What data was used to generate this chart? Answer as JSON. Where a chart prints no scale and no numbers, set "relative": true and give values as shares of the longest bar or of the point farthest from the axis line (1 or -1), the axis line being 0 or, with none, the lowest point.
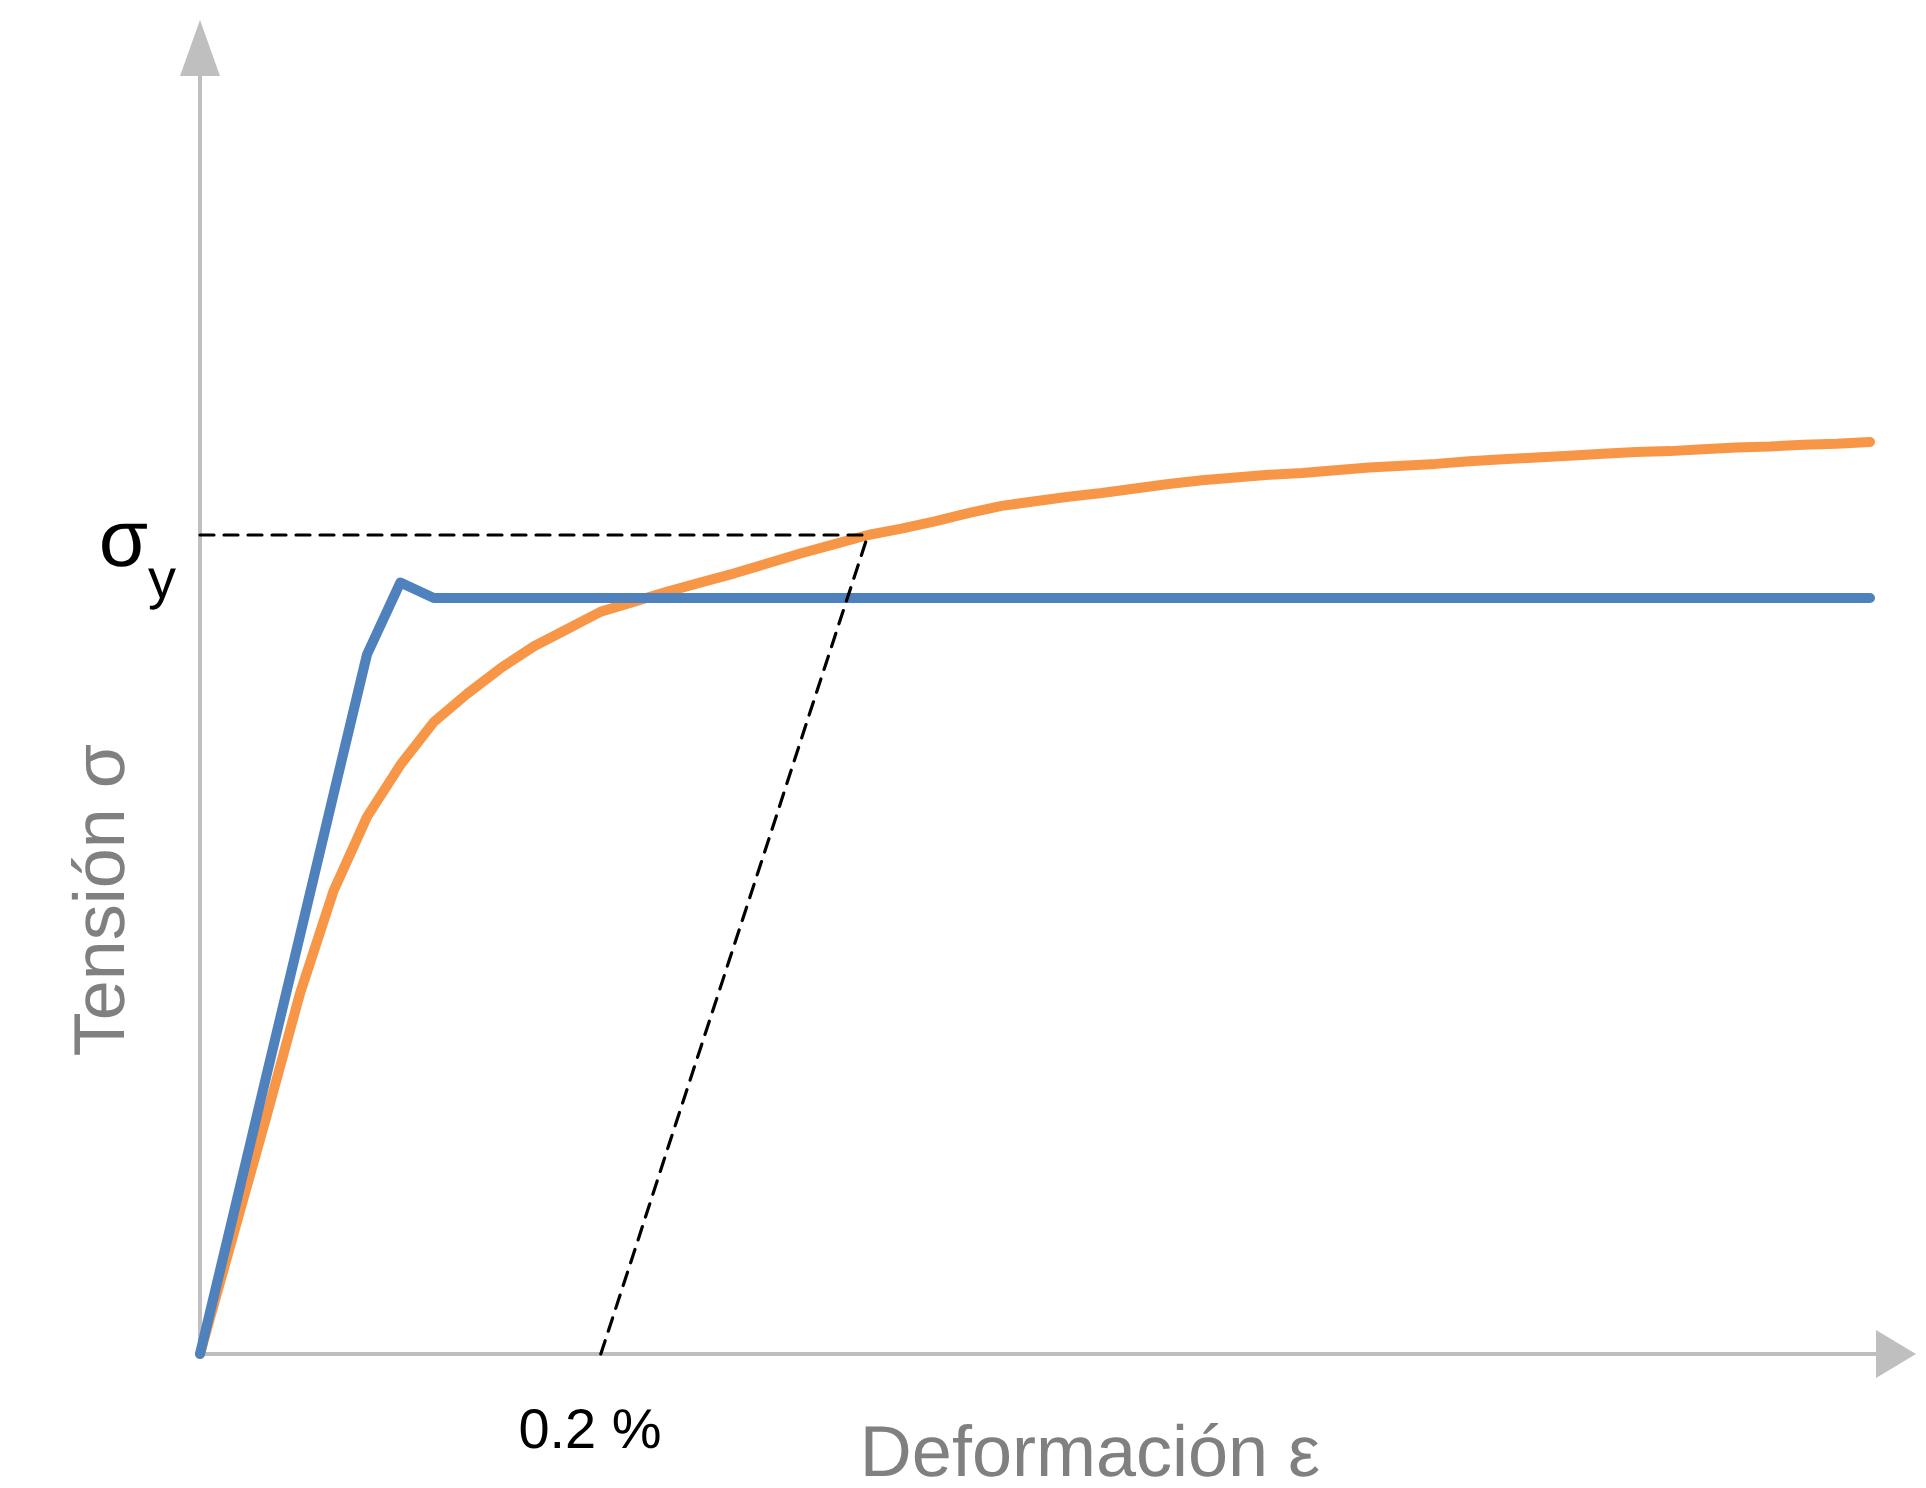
{
  "chart_data": {
    "type": "line",
    "relative": true,
    "xlabel": "Deformación ε",
    "ylabel": "Tensión σ",
    "line_style": "solid",
    "marker": "none",
    "categories": [
      null,
      null,
      null,
      null,
      null,
      null,
      null,
      null,
      null,
      null,
      null,
      null,
      null,
      null,
      null,
      null,
      null,
      null,
      null,
      null,
      null,
      null,
      null,
      null,
      null,
      null,
      null,
      null,
      null,
      null,
      null,
      null,
      null,
      null,
      null,
      null,
      null,
      null,
      null,
      null,
      null,
      null,
      null,
      null,
      null,
      null,
      null,
      null,
      null,
      null,
      null
    ],
    "series": [
      {
        "color": "#f79646",
        "values": [
          0,
          0.131,
          0.262,
          0.396,
          0.508,
          0.589,
          0.646,
          0.693,
          0.724,
          0.752,
          0.776,
          0.795,
          0.814,
          0.825,
          0.836,
          0.846,
          0.856,
          0.867,
          0.878,
          0.888,
          0.898,
          0.905,
          0.913,
          0.922,
          0.93,
          0.935,
          0.94,
          0.944,
          0.949,
          0.954,
          0.958,
          0.961,
          0.964,
          0.966,
          0.969,
          0.972,
          0.974,
          0.976,
          0.979,
          0.981,
          0.983,
          0.985,
          0.987,
          0.989,
          0.99,
          0.992,
          0.994,
          0.995,
          0.997,
          0.998,
          1
        ]
      },
      {
        "color": "#4f81bd",
        "values": [
          0,
          0.153,
          0.307,
          0.46,
          0.614,
          0.767,
          0.846,
          0.829,
          0.829,
          0.829,
          0.829,
          0.829,
          0.829,
          0.829,
          0.829,
          0.829,
          0.829,
          0.829,
          0.829,
          0.829,
          0.829,
          0.829,
          0.829,
          0.829,
          0.829,
          0.829,
          0.829,
          0.829,
          0.829,
          0.829,
          0.829,
          0.829,
          0.829,
          0.829,
          0.829,
          0.829,
          0.829,
          0.829,
          0.829,
          0.829,
          0.829,
          0.829,
          0.829,
          0.829,
          0.829,
          0.829,
          0.829,
          0.829,
          0.829,
          0.829,
          0.829
        ]
      },
      {
        "color": "#000000",
        "line_style": "dashed",
        "values": [
          0.898,
          0.898,
          0.898,
          0.898,
          0.898,
          0.898,
          0.898,
          0.898,
          0.898,
          0.898,
          0.898,
          0.898,
          0.898,
          0.898,
          0.898,
          0.898,
          0.898,
          0.898,
          0.898,
          0.898,
          0.898,
          null,
          null,
          null,
          null,
          null,
          null,
          null,
          null,
          null,
          null,
          null,
          null,
          null,
          null,
          null,
          null,
          null,
          null,
          null,
          null,
          null,
          null,
          null,
          null,
          null,
          null,
          null,
          null,
          null,
          null
        ]
      },
      {
        "color": "#000000",
        "line_style": "dashed",
        "values": [
          null,
          null,
          null,
          null,
          null,
          null,
          null,
          null,
          null,
          null,
          null,
          null,
          0,
          0.112,
          0.225,
          0.337,
          0.449,
          0.561,
          0.674,
          0.786,
          0.898,
          null,
          null,
          null,
          null,
          null,
          null,
          null,
          null,
          null,
          null,
          null,
          null,
          null,
          null,
          null,
          null,
          null,
          null,
          null,
          null,
          null,
          null,
          null,
          null,
          null,
          null,
          null,
          null,
          null,
          null
        ]
      }
    ],
    "annotations": [
      "σ$_{y}$",
      "0.2 %"
    ]
  }
}
